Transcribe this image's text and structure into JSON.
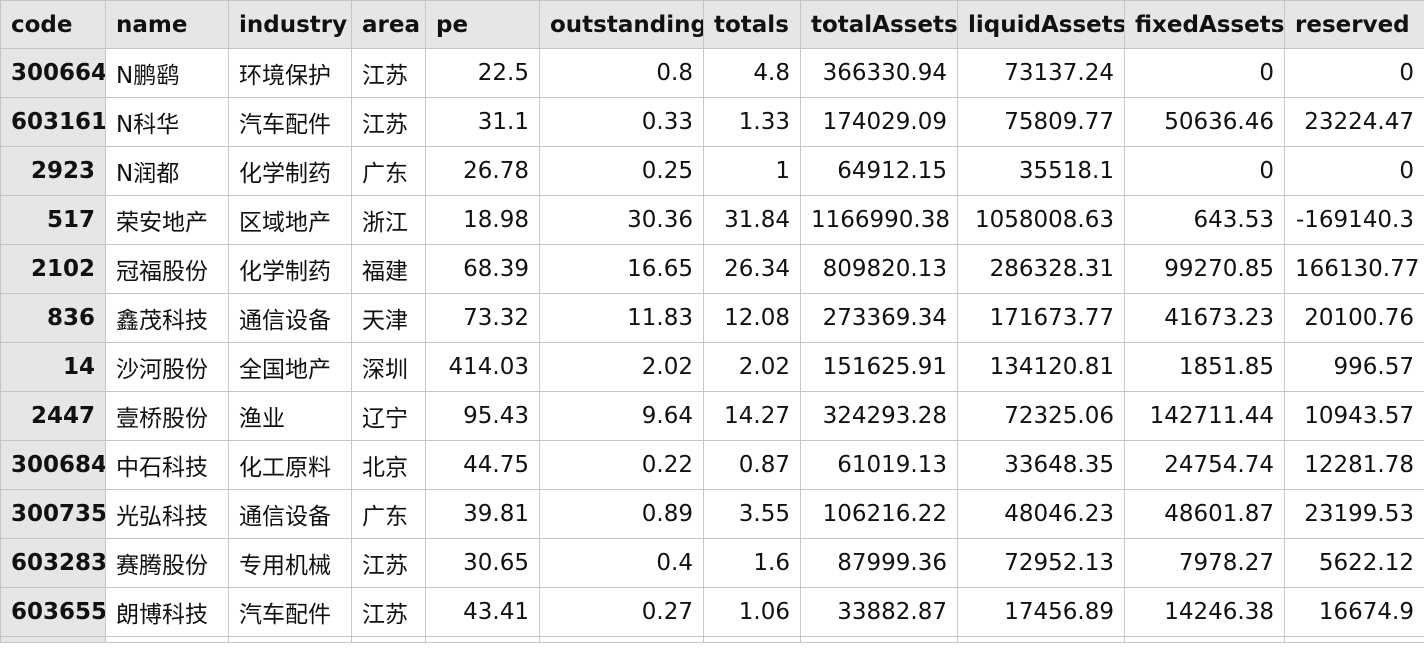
{
  "columns": [
    "code",
    "name",
    "industry",
    "area",
    "pe",
    "outstanding",
    "totals",
    "totalAssets",
    "liquidAssets",
    "fixedAssets",
    "reserved"
  ],
  "rows": [
    [
      "300664",
      "N鹏鹞",
      "环境保护",
      "江苏",
      "22.5",
      "0.8",
      "4.8",
      "366330.94",
      "73137.24",
      "0",
      "0"
    ],
    [
      "603161",
      "N科华",
      "汽车配件",
      "江苏",
      "31.1",
      "0.33",
      "1.33",
      "174029.09",
      "75809.77",
      "50636.46",
      "23224.47"
    ],
    [
      "2923",
      "N润都",
      "化学制药",
      "广东",
      "26.78",
      "0.25",
      "1",
      "64912.15",
      "35518.1",
      "0",
      "0"
    ],
    [
      "517",
      "荣安地产",
      "区域地产",
      "浙江",
      "18.98",
      "30.36",
      "31.84",
      "1166990.38",
      "1058008.63",
      "643.53",
      "-169140.3"
    ],
    [
      "2102",
      "冠福股份",
      "化学制药",
      "福建",
      "68.39",
      "16.65",
      "26.34",
      "809820.13",
      "286328.31",
      "99270.85",
      "166130.77"
    ],
    [
      "836",
      "鑫茂科技",
      "通信设备",
      "天津",
      "73.32",
      "11.83",
      "12.08",
      "273369.34",
      "171673.77",
      "41673.23",
      "20100.76"
    ],
    [
      "14",
      "沙河股份",
      "全国地产",
      "深圳",
      "414.03",
      "2.02",
      "2.02",
      "151625.91",
      "134120.81",
      "1851.85",
      "996.57"
    ],
    [
      "2447",
      "壹桥股份",
      "渔业",
      "辽宁",
      "95.43",
      "9.64",
      "14.27",
      "324293.28",
      "72325.06",
      "142711.44",
      "10943.57"
    ],
    [
      "300684",
      "中石科技",
      "化工原料",
      "北京",
      "44.75",
      "0.22",
      "0.87",
      "61019.13",
      "33648.35",
      "24754.74",
      "12281.78"
    ],
    [
      "300735",
      "光弘科技",
      "通信设备",
      "广东",
      "39.81",
      "0.89",
      "3.55",
      "106216.22",
      "48046.23",
      "48601.87",
      "23199.53"
    ],
    [
      "603283",
      "赛腾股份",
      "专用机械",
      "江苏",
      "30.65",
      "0.4",
      "1.6",
      "87999.36",
      "72952.13",
      "7978.27",
      "5622.12"
    ],
    [
      "603655",
      "朗博科技",
      "汽车配件",
      "江苏",
      "43.41",
      "0.27",
      "1.06",
      "33882.87",
      "17456.89",
      "14246.38",
      "16674.9"
    ]
  ]
}
